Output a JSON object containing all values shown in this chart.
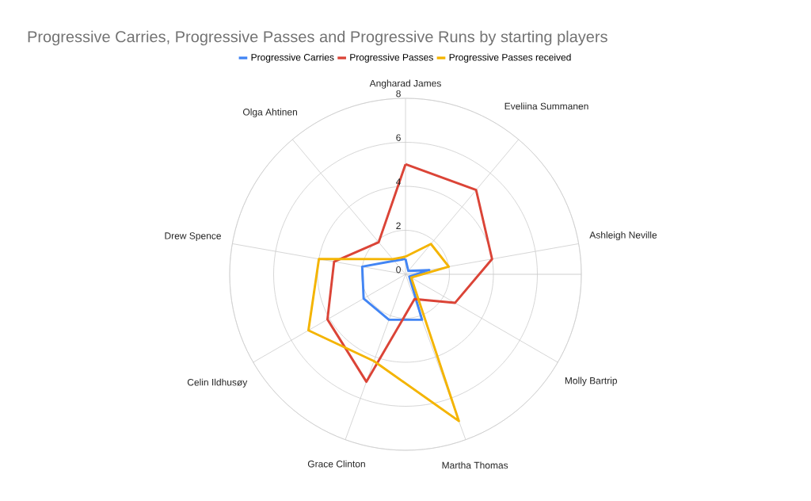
{
  "chart_data": {
    "type": "radar",
    "title": "Progressive Carries, Progressive Passes and Progressive Runs by starting players",
    "categories": [
      "Angharad James",
      "Eveliina Summanen",
      "Ashleigh Neville",
      "Molly Bartrip",
      "Martha Thomas",
      "Grace Clinton",
      "Celin Ildhusøy",
      "Drew Spence",
      "Olga Ahtinen"
    ],
    "series": [
      {
        "name": "Progressive Carries",
        "color": "#4285f4",
        "values": [
          0.7,
          0.2,
          1.1,
          0.2,
          2.2,
          2.2,
          2.2,
          2.0,
          0.8
        ]
      },
      {
        "name": "Progressive Passes",
        "color": "#db4437",
        "values": [
          5,
          5,
          4,
          2.6,
          1.2,
          5.2,
          4.1,
          3.3,
          1.9
        ]
      },
      {
        "name": "Progressive Passes received",
        "color": "#f4b400",
        "values": [
          0.8,
          1.8,
          2,
          0.3,
          7.1,
          4.2,
          5.1,
          4,
          0.9
        ]
      }
    ],
    "ylim": [
      0,
      8
    ],
    "yticks": [
      0,
      2,
      4,
      6,
      8
    ],
    "grid": true,
    "legend": "top"
  }
}
